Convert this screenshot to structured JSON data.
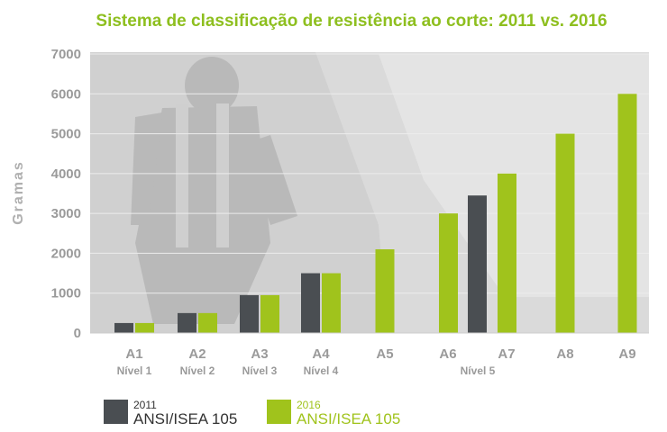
{
  "colors": {
    "title": "#8ebf1f",
    "series_2011": "#4a4e52",
    "series_2016": "#a0c31c",
    "axis_text": "#9a9a9a",
    "photo_bg": "#d9d9d9",
    "photo_dark": "#bdbdbd"
  },
  "chart_data": {
    "type": "bar",
    "title": "Sistema de classificação de resistência ao corte: 2011 vs. 2016",
    "ylabel": "Gramas",
    "xlabel": "",
    "ylim": [
      0,
      7000
    ],
    "yticks": [
      "0",
      "1000",
      "2000",
      "3000",
      "4000",
      "5000",
      "6000",
      "7000"
    ],
    "categories": [
      "A1",
      "A2",
      "A3",
      "A4",
      "A5",
      "A6",
      "A7",
      "A8",
      "A9"
    ],
    "level_labels": [
      "Nível 1",
      "Nível 2",
      "Nível 3",
      "Nível 4",
      "Nível 5"
    ],
    "series": [
      {
        "name": "2011 ANSI/ISEA 105",
        "values": [
          250,
          500,
          950,
          1500,
          null,
          null,
          3450,
          null,
          null
        ]
      },
      {
        "name": "2016 ANSI/ISEA 105",
        "values": [
          250,
          500,
          950,
          1500,
          2100,
          3000,
          4000,
          5000,
          6000
        ]
      }
    ],
    "grid": true,
    "legend_position": "bottom-left"
  },
  "legend": [
    {
      "year": "2011",
      "standard": "ANSI/ISEA 105"
    },
    {
      "year": "2016",
      "standard": "ANSI/ISEA 105"
    }
  ]
}
